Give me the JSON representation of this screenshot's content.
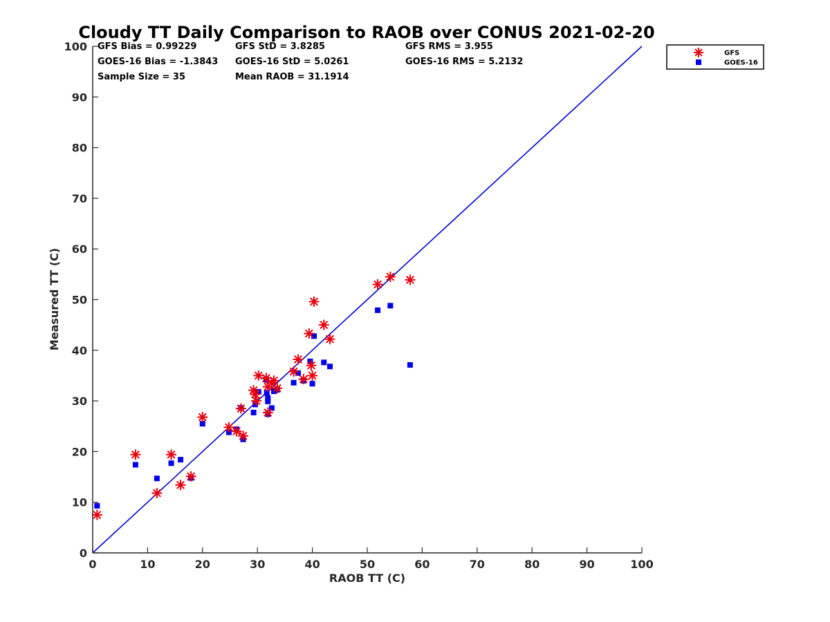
{
  "chart_data": {
    "type": "scatter",
    "title": "Cloudy TT Daily Comparison to RAOB over CONUS 2021-02-20",
    "xlabel": "RAOB TT (C)",
    "ylabel": "Measured TT (C)",
    "xlim": [
      0,
      100
    ],
    "ylim": [
      0,
      100
    ],
    "xticks": [
      "0",
      "10",
      "20",
      "30",
      "40",
      "50",
      "60",
      "70",
      "80",
      "90",
      "100"
    ],
    "yticks": [
      "0",
      "10",
      "20",
      "30",
      "40",
      "50",
      "60",
      "70",
      "80",
      "90",
      "100"
    ],
    "grid": false,
    "legend_position": "outside-top-right",
    "reference_line": {
      "from": [
        0,
        0
      ],
      "to": [
        100,
        100
      ],
      "color": "#0000cc"
    },
    "stats": [
      [
        "GFS Bias = 0.99229",
        "GFS StD = 3.8285",
        "GFS RMS = 3.955"
      ],
      [
        "GOES-16 Bias = -1.3843",
        "GOES-16 StD = 5.0261",
        "GOES-16 RMS = 5.2132"
      ],
      [
        "Sample Size = 35",
        "Mean RAOB = 31.1914",
        ""
      ]
    ],
    "series": [
      {
        "name": "GFS",
        "marker": "asterisk",
        "color": "#e8000b",
        "points": [
          [
            0.8,
            7.5
          ],
          [
            7.8,
            19.4
          ],
          [
            11.7,
            11.8
          ],
          [
            14.3,
            19.4
          ],
          [
            16.0,
            13.4
          ],
          [
            17.9,
            15.1
          ],
          [
            20.0,
            26.8
          ],
          [
            24.8,
            24.8
          ],
          [
            26.2,
            24.0
          ],
          [
            27.0,
            28.5
          ],
          [
            27.4,
            23.1
          ],
          [
            29.3,
            32.1
          ],
          [
            29.6,
            31.3
          ],
          [
            29.8,
            30.0
          ],
          [
            30.2,
            35.0
          ],
          [
            31.6,
            34.5
          ],
          [
            31.9,
            27.7
          ],
          [
            31.9,
            32.8
          ],
          [
            32.6,
            33.5
          ],
          [
            33.0,
            34.0
          ],
          [
            33.6,
            32.5
          ],
          [
            36.6,
            35.8
          ],
          [
            37.4,
            38.2
          ],
          [
            38.4,
            34.3
          ],
          [
            39.4,
            43.3
          ],
          [
            39.8,
            37.0
          ],
          [
            40.0,
            35.0
          ],
          [
            40.3,
            49.6
          ],
          [
            42.1,
            45.0
          ],
          [
            43.2,
            42.2
          ],
          [
            51.9,
            53.0
          ],
          [
            54.2,
            54.5
          ],
          [
            57.8,
            53.9
          ]
        ]
      },
      {
        "name": "GOES-16",
        "marker": "square",
        "color": "#0000ee",
        "points": [
          [
            0.8,
            9.3
          ],
          [
            7.8,
            17.4
          ],
          [
            11.7,
            14.7
          ],
          [
            14.3,
            17.7
          ],
          [
            16.0,
            18.4
          ],
          [
            17.9,
            14.8
          ],
          [
            20.0,
            25.5
          ],
          [
            24.8,
            23.8
          ],
          [
            26.2,
            24.4
          ],
          [
            27.0,
            28.6
          ],
          [
            27.4,
            22.4
          ],
          [
            29.3,
            27.7
          ],
          [
            29.6,
            29.3
          ],
          [
            30.2,
            31.8
          ],
          [
            31.6,
            34.2
          ],
          [
            31.7,
            31.6
          ],
          [
            31.9,
            30.6
          ],
          [
            31.9,
            29.9
          ],
          [
            31.9,
            27.4
          ],
          [
            32.6,
            28.6
          ],
          [
            33.0,
            31.9
          ],
          [
            33.6,
            32.2
          ],
          [
            36.6,
            33.6
          ],
          [
            37.4,
            35.5
          ],
          [
            38.4,
            34.0
          ],
          [
            39.6,
            37.8
          ],
          [
            40.0,
            33.4
          ],
          [
            40.3,
            42.8
          ],
          [
            42.1,
            37.6
          ],
          [
            43.2,
            36.8
          ],
          [
            51.9,
            47.9
          ],
          [
            54.2,
            48.8
          ],
          [
            57.8,
            37.1
          ]
        ]
      }
    ]
  }
}
